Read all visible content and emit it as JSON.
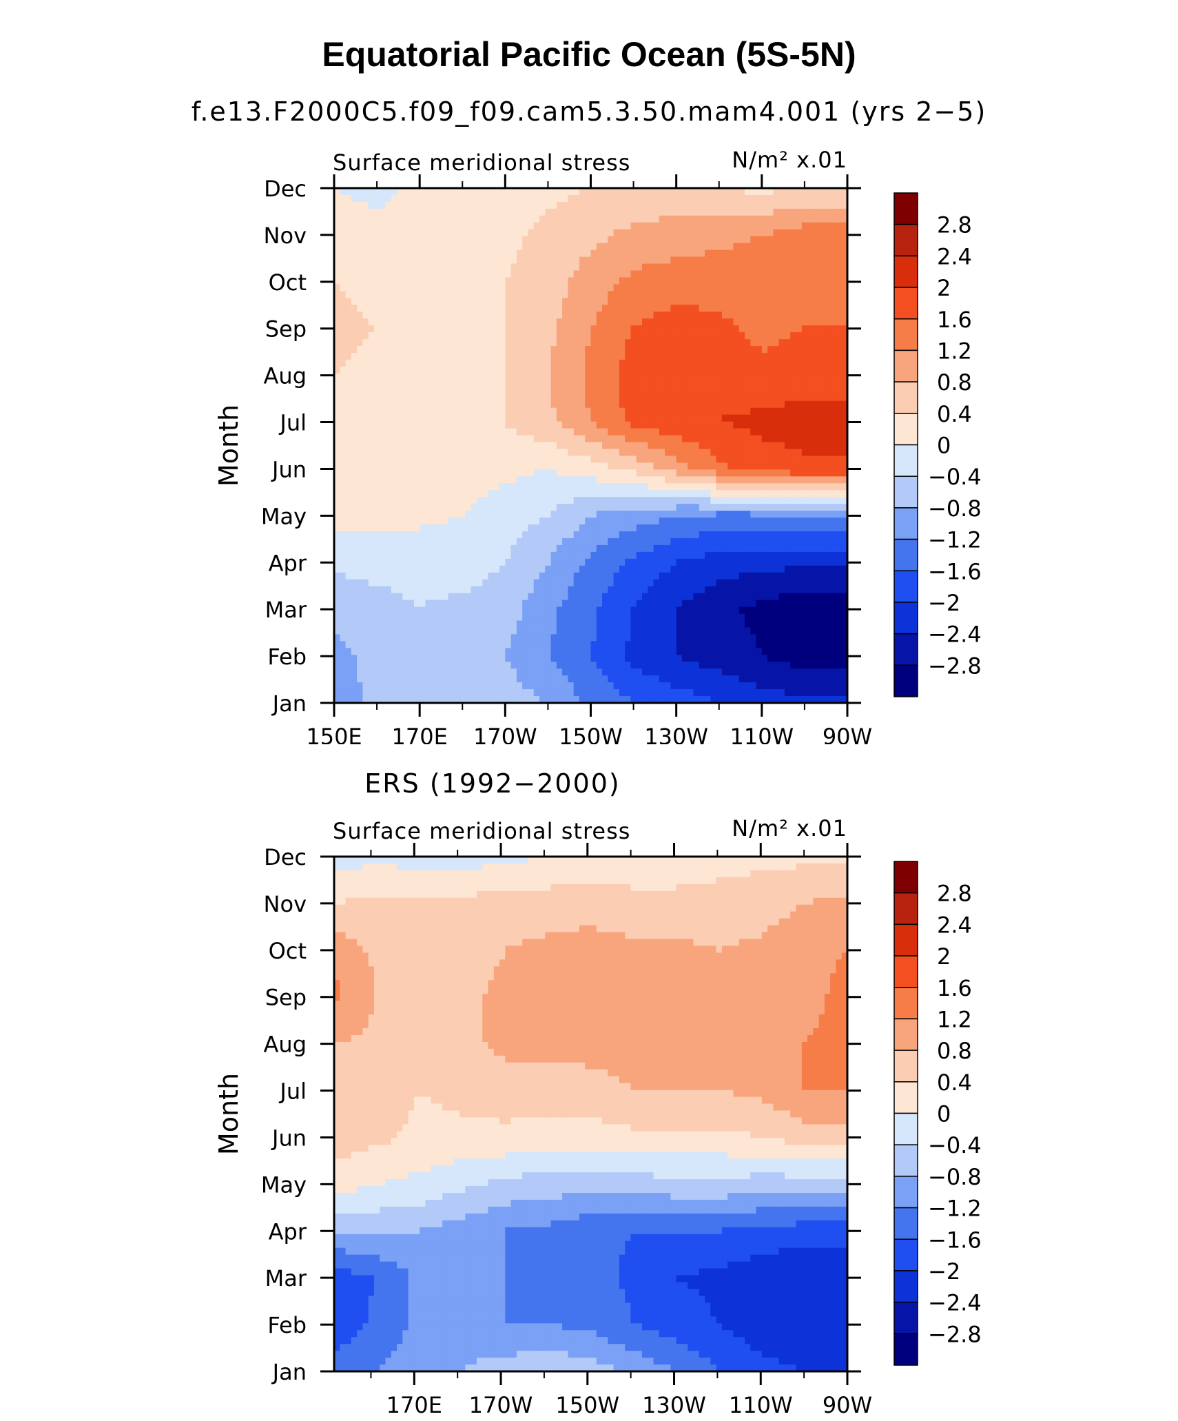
{
  "figure": {
    "title": "Equatorial Pacific Ocean (5S-5N)",
    "subtitle": "f.e13.F2000C5.f09_f09.cam5.3.50.mam4.001 (yrs 2−5)"
  },
  "colorbar": {
    "levels": [
      -2.8,
      -2.4,
      -2,
      -1.6,
      -1.2,
      -0.8,
      -0.4,
      0,
      0.4,
      0.8,
      1.2,
      1.6,
      2,
      2.4,
      2.8
    ],
    "labels": [
      "2.8",
      "2.4",
      "2",
      "1.6",
      "1.2",
      "0.8",
      "0.4",
      "0",
      "−0.4",
      "−0.8",
      "−1.2",
      "−1.6",
      "−2",
      "−2.4",
      "−2.8"
    ],
    "colors": [
      "#00007f",
      "#0615a8",
      "#0d33d8",
      "#1f4ff0",
      "#4474ee",
      "#7aa1f5",
      "#b3c9f7",
      "#d6e6fb",
      "#fde6d4",
      "#fbcdb3",
      "#f8a57d",
      "#f67c48",
      "#f34f20",
      "#d82e0c",
      "#b8230f",
      "#7f0000"
    ]
  },
  "chart_data": [
    {
      "type": "heatmap",
      "panel_title": "",
      "left_label": "Surface meridional stress",
      "right_label": "N/m² x.01",
      "ylabel": "Month",
      "x_tick_labels": [
        "150E",
        "170E",
        "170W",
        "150W",
        "130W",
        "110W",
        "90W"
      ],
      "x_tick_lons": [
        150,
        170,
        190,
        210,
        230,
        250,
        270
      ],
      "y_tick_labels": [
        "Jan",
        "Feb",
        "Mar",
        "Apr",
        "May",
        "Jun",
        "Jul",
        "Aug",
        "Sep",
        "Oct",
        "Nov",
        "Dec"
      ],
      "xlim": [
        150,
        270
      ],
      "x": [
        150,
        160,
        170,
        180,
        190,
        200,
        210,
        220,
        230,
        240,
        250,
        260,
        270
      ],
      "y": [
        "Jan",
        "Feb",
        "Mar",
        "Apr",
        "May",
        "Jun",
        "Jul",
        "Aug",
        "Sep",
        "Oct",
        "Nov",
        "Dec"
      ],
      "z": [
        [
          -1.0,
          -0.7,
          -0.5,
          -0.5,
          -0.6,
          -0.8,
          -1.3,
          -1.6,
          -1.8,
          -2.0,
          -2.2,
          -2.3,
          -2.3
        ],
        [
          -0.9,
          -0.7,
          -0.6,
          -0.7,
          -0.8,
          -1.2,
          -1.6,
          -2.1,
          -2.4,
          -2.6,
          -2.8,
          -3.0,
          -3.0
        ],
        [
          -0.7,
          -0.5,
          -0.4,
          -0.5,
          -0.6,
          -1.1,
          -1.5,
          -2.0,
          -2.4,
          -2.7,
          -2.9,
          -3.1,
          -3.1
        ],
        [
          -0.3,
          -0.3,
          -0.3,
          -0.2,
          -0.4,
          -0.8,
          -1.3,
          -1.7,
          -2.0,
          -2.2,
          -2.3,
          -2.3,
          -2.3
        ],
        [
          0.1,
          0.2,
          0.1,
          0.0,
          -0.2,
          -0.4,
          -0.8,
          -1.0,
          -1.2,
          -1.3,
          -1.3,
          -1.2,
          -1.2
        ],
        [
          0.2,
          0.2,
          0.2,
          0.2,
          0.1,
          0.0,
          0.2,
          0.5,
          1.0,
          1.5,
          1.8,
          1.9,
          1.9
        ],
        [
          0.3,
          0.3,
          0.3,
          0.3,
          0.4,
          0.7,
          1.2,
          1.7,
          1.9,
          2.0,
          2.1,
          2.2,
          2.2
        ],
        [
          0.4,
          0.3,
          0.2,
          0.3,
          0.4,
          0.8,
          1.3,
          1.8,
          2.0,
          1.9,
          1.7,
          1.8,
          1.8
        ],
        [
          0.5,
          0.4,
          0.3,
          0.3,
          0.4,
          0.7,
          1.2,
          1.6,
          1.8,
          1.7,
          1.5,
          1.6,
          1.6
        ],
        [
          0.4,
          0.3,
          0.3,
          0.3,
          0.4,
          0.6,
          1.0,
          1.3,
          1.4,
          1.4,
          1.4,
          1.5,
          1.5
        ],
        [
          0.2,
          0.1,
          0.1,
          0.2,
          0.3,
          0.5,
          0.7,
          0.9,
          1.0,
          1.1,
          1.2,
          1.4,
          1.4
        ],
        [
          0.0,
          -0.1,
          0.1,
          0.1,
          0.2,
          0.3,
          0.4,
          0.5,
          0.5,
          0.4,
          0.3,
          0.4,
          0.4
        ]
      ]
    },
    {
      "type": "heatmap",
      "panel_title": "ERS (1992−2000)",
      "left_label": "Surface meridional stress",
      "right_label": "N/m² x.01",
      "ylabel": "Month",
      "x_tick_labels": [
        "170E",
        "170W",
        "150W",
        "130W",
        "110W",
        "90W"
      ],
      "x_tick_lons": [
        170,
        190,
        210,
        230,
        250,
        270
      ],
      "y_tick_labels": [
        "Jan",
        "Feb",
        "Mar",
        "Apr",
        "May",
        "Jun",
        "Jul",
        "Aug",
        "Sep",
        "Oct",
        "Nov",
        "Dec"
      ],
      "xlim": [
        151.5,
        270
      ],
      "x": [
        151.5,
        160,
        170,
        180,
        190,
        200,
        210,
        220,
        230,
        240,
        250,
        260,
        270
      ],
      "y": [
        "Jan",
        "Feb",
        "Mar",
        "Apr",
        "May",
        "Jun",
        "Jul",
        "Aug",
        "Sep",
        "Oct",
        "Nov",
        "Dec"
      ],
      "z": [
        [
          -1.4,
          -1.2,
          -0.9,
          -0.8,
          -0.6,
          -0.5,
          -0.6,
          -0.9,
          -1.2,
          -1.6,
          -1.9,
          -2.0,
          -2.0
        ],
        [
          -1.9,
          -1.5,
          -1.1,
          -1.0,
          -1.2,
          -1.2,
          -1.3,
          -1.6,
          -1.8,
          -2.0,
          -2.2,
          -2.3,
          -2.3
        ],
        [
          -1.8,
          -1.6,
          -1.1,
          -0.9,
          -1.2,
          -1.3,
          -1.4,
          -1.7,
          -2.0,
          -2.1,
          -2.3,
          -2.4,
          -2.4
        ],
        [
          -0.8,
          -0.7,
          -0.8,
          -1.0,
          -1.2,
          -1.3,
          -1.5,
          -1.6,
          -1.6,
          -1.6,
          -1.7,
          -1.8,
          -1.8
        ],
        [
          0.2,
          0.0,
          -0.1,
          -0.3,
          -0.5,
          -0.6,
          -0.6,
          -0.6,
          -0.5,
          -0.5,
          -0.6,
          -0.6,
          -0.6
        ],
        [
          0.6,
          0.5,
          0.3,
          0.3,
          0.3,
          0.2,
          0.2,
          0.3,
          0.3,
          0.3,
          0.4,
          0.6,
          0.6
        ],
        [
          0.7,
          0.6,
          0.4,
          0.5,
          0.6,
          0.6,
          0.7,
          0.8,
          0.8,
          0.8,
          0.9,
          1.2,
          1.2
        ],
        [
          0.8,
          0.7,
          0.6,
          0.7,
          0.9,
          0.9,
          0.9,
          0.9,
          0.9,
          0.8,
          0.8,
          1.2,
          1.3
        ],
        [
          1.3,
          0.8,
          0.7,
          0.7,
          0.9,
          1.0,
          1.0,
          0.9,
          1.0,
          0.9,
          0.8,
          1.1,
          1.3
        ],
        [
          1.1,
          0.7,
          0.6,
          0.6,
          0.8,
          0.9,
          1.0,
          0.9,
          0.9,
          0.8,
          0.9,
          1.1,
          1.2
        ],
        [
          0.4,
          0.5,
          0.5,
          0.5,
          0.6,
          0.6,
          0.6,
          0.5,
          0.5,
          0.5,
          0.6,
          0.8,
          0.9
        ],
        [
          -0.2,
          -0.1,
          -0.2,
          -0.2,
          -0.1,
          0.0,
          0.1,
          0.2,
          0.2,
          0.3,
          0.3,
          0.3,
          0.3
        ]
      ]
    }
  ]
}
